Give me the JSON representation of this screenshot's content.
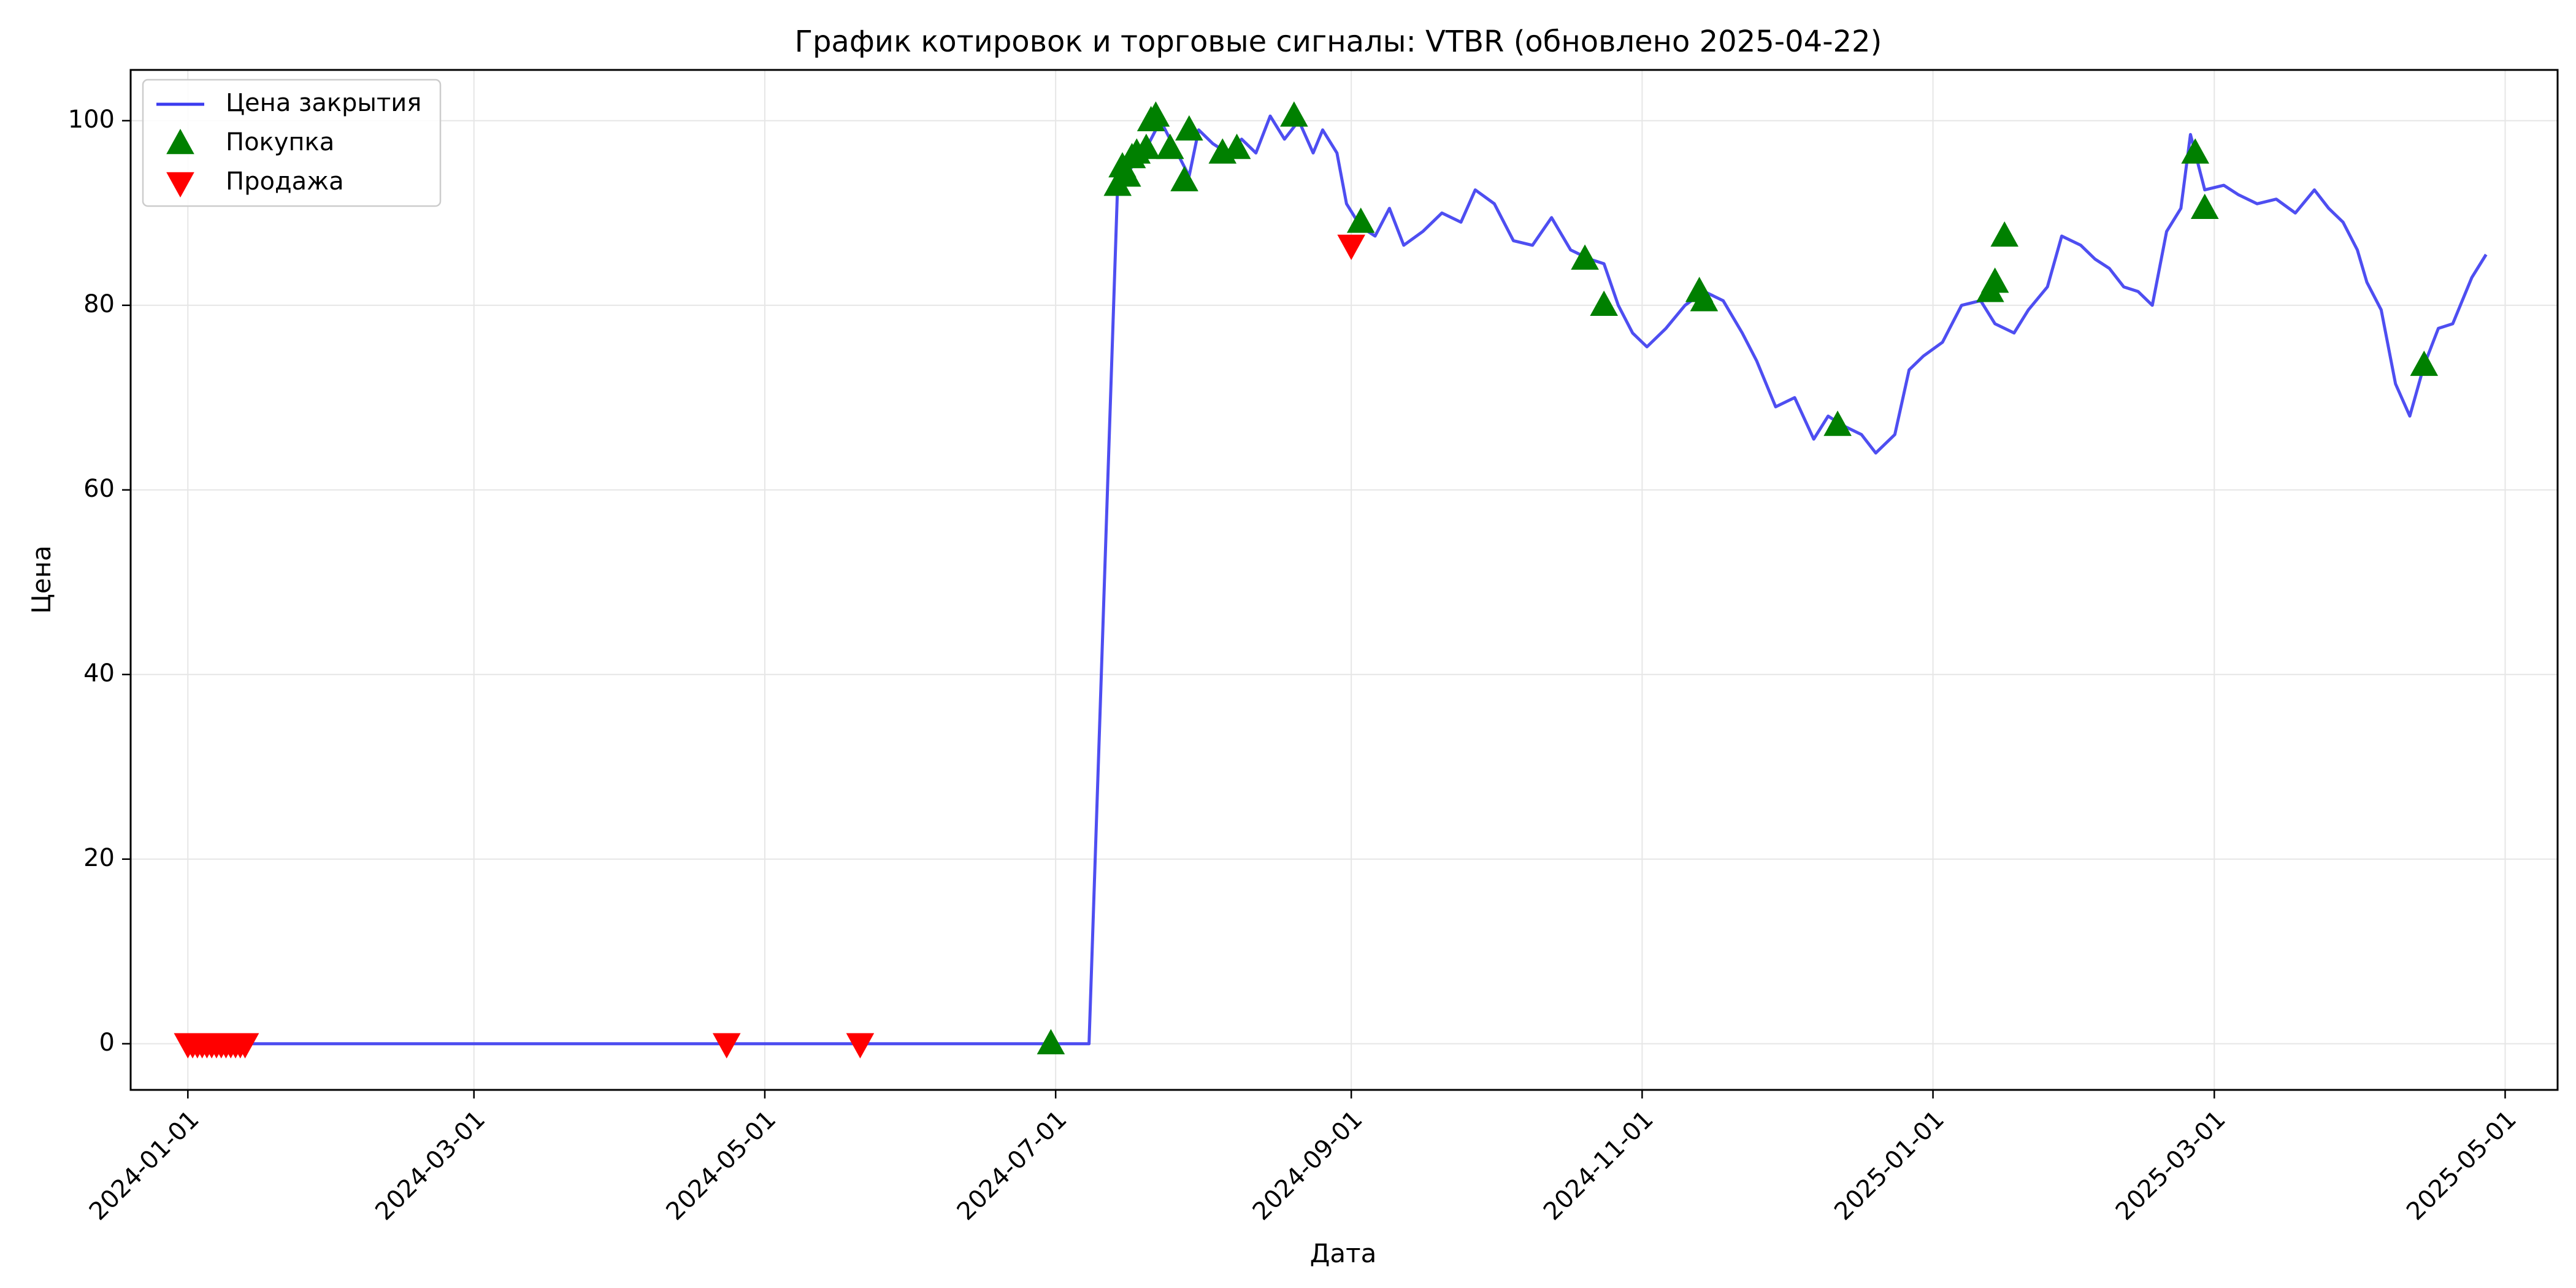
{
  "chart_data": {
    "type": "line",
    "title": "График котировок и торговые сигналы: VTBR (обновлено 2025-04-22)",
    "xlabel": "Дата",
    "ylabel": "Цена",
    "xlim": [
      "2023-12-20",
      "2025-05-12"
    ],
    "ylim": [
      -5,
      105.5
    ],
    "x_ticks": [
      "2024-01-01",
      "2024-03-01",
      "2024-05-01",
      "2024-07-01",
      "2024-09-01",
      "2024-11-01",
      "2025-01-01",
      "2025-03-01",
      "2025-05-01"
    ],
    "y_ticks": [
      0,
      20,
      40,
      60,
      80,
      100
    ],
    "grid": true,
    "legend": "top-left",
    "colors": {
      "close": "#3b3bef",
      "buy": "#008000",
      "sell": "#ff0000"
    },
    "series": [
      {
        "name": "Цена закрытия",
        "kind": "line",
        "points": [
          [
            "2024-01-03",
            0
          ],
          [
            "2024-03-01",
            0
          ],
          [
            "2024-05-01",
            0
          ],
          [
            "2024-07-01",
            0
          ],
          [
            "2024-07-08",
            0
          ],
          [
            "2024-07-14",
            93
          ],
          [
            "2024-07-17",
            95
          ],
          [
            "2024-07-20",
            97
          ],
          [
            "2024-07-23",
            100
          ],
          [
            "2024-07-26",
            97
          ],
          [
            "2024-07-29",
            94
          ],
          [
            "2024-07-31",
            99
          ],
          [
            "2024-08-03",
            97.5
          ],
          [
            "2024-08-06",
            96.5
          ],
          [
            "2024-08-09",
            98
          ],
          [
            "2024-08-12",
            96.5
          ],
          [
            "2024-08-15",
            100.5
          ],
          [
            "2024-08-18",
            98
          ],
          [
            "2024-08-21",
            100
          ],
          [
            "2024-08-24",
            96.5
          ],
          [
            "2024-08-26",
            99
          ],
          [
            "2024-08-29",
            96.5
          ],
          [
            "2024-08-31",
            91
          ],
          [
            "2024-09-03",
            88.5
          ],
          [
            "2024-09-06",
            87.5
          ],
          [
            "2024-09-09",
            90.5
          ],
          [
            "2024-09-12",
            86.5
          ],
          [
            "2024-09-16",
            88
          ],
          [
            "2024-09-20",
            90
          ],
          [
            "2024-09-24",
            89
          ],
          [
            "2024-09-27",
            92.5
          ],
          [
            "2024-10-01",
            91
          ],
          [
            "2024-10-05",
            87
          ],
          [
            "2024-10-09",
            86.5
          ],
          [
            "2024-10-13",
            89.5
          ],
          [
            "2024-10-17",
            86
          ],
          [
            "2024-10-21",
            85
          ],
          [
            "2024-10-24",
            84.5
          ],
          [
            "2024-10-27",
            80
          ],
          [
            "2024-10-30",
            77
          ],
          [
            "2024-11-02",
            75.5
          ],
          [
            "2024-11-06",
            77.5
          ],
          [
            "2024-11-10",
            80
          ],
          [
            "2024-11-14",
            81.5
          ],
          [
            "2024-11-18",
            80.5
          ],
          [
            "2024-11-22",
            77
          ],
          [
            "2024-11-25",
            74
          ],
          [
            "2024-11-29",
            69
          ],
          [
            "2024-12-03",
            70
          ],
          [
            "2024-12-07",
            65.5
          ],
          [
            "2024-12-10",
            68
          ],
          [
            "2024-12-13",
            67
          ],
          [
            "2024-12-17",
            66
          ],
          [
            "2024-12-20",
            64
          ],
          [
            "2024-12-24",
            66
          ],
          [
            "2024-12-27",
            73
          ],
          [
            "2024-12-30",
            74.5
          ],
          [
            "2025-01-03",
            76
          ],
          [
            "2025-01-07",
            80
          ],
          [
            "2025-01-11",
            80.5
          ],
          [
            "2025-01-14",
            78
          ],
          [
            "2025-01-18",
            77
          ],
          [
            "2025-01-21",
            79.5
          ],
          [
            "2025-01-25",
            82
          ],
          [
            "2025-01-28",
            87.5
          ],
          [
            "2025-02-01",
            86.5
          ],
          [
            "2025-02-04",
            85
          ],
          [
            "2025-02-07",
            84
          ],
          [
            "2025-02-10",
            82
          ],
          [
            "2025-02-13",
            81.5
          ],
          [
            "2025-02-16",
            80
          ],
          [
            "2025-02-19",
            88
          ],
          [
            "2025-02-22",
            90.5
          ],
          [
            "2025-02-24",
            98.5
          ],
          [
            "2025-02-27",
            92.5
          ],
          [
            "2025-03-03",
            93
          ],
          [
            "2025-03-06",
            92
          ],
          [
            "2025-03-10",
            91
          ],
          [
            "2025-03-14",
            91.5
          ],
          [
            "2025-03-18",
            90
          ],
          [
            "2025-03-22",
            92.5
          ],
          [
            "2025-03-25",
            90.5
          ],
          [
            "2025-03-28",
            89
          ],
          [
            "2025-03-31",
            86
          ],
          [
            "2025-04-02",
            82.5
          ],
          [
            "2025-04-05",
            79.5
          ],
          [
            "2025-04-08",
            71.5
          ],
          [
            "2025-04-11",
            68
          ],
          [
            "2025-04-14",
            73.5
          ],
          [
            "2025-04-17",
            77.5
          ],
          [
            "2025-04-20",
            78
          ],
          [
            "2025-04-24",
            83
          ],
          [
            "2025-04-27",
            85.5
          ]
        ]
      },
      {
        "name": "Покупка",
        "kind": "marker-up",
        "points": [
          [
            "2024-06-30",
            0
          ],
          [
            "2024-07-14",
            93
          ],
          [
            "2024-07-15",
            95
          ],
          [
            "2024-07-16",
            94
          ],
          [
            "2024-07-17",
            96
          ],
          [
            "2024-07-18",
            96.5
          ],
          [
            "2024-07-20",
            97
          ],
          [
            "2024-07-21",
            100
          ],
          [
            "2024-07-22",
            100.5
          ],
          [
            "2024-07-25",
            97
          ],
          [
            "2024-07-28",
            93.5
          ],
          [
            "2024-07-29",
            99
          ],
          [
            "2024-08-05",
            96.5
          ],
          [
            "2024-08-08",
            97
          ],
          [
            "2024-08-20",
            100.5
          ],
          [
            "2024-09-03",
            89
          ],
          [
            "2024-10-20",
            85
          ],
          [
            "2024-10-24",
            80
          ],
          [
            "2024-11-13",
            81.5
          ],
          [
            "2024-11-14",
            80.5
          ],
          [
            "2024-12-12",
            67
          ],
          [
            "2025-01-13",
            81.5
          ],
          [
            "2025-01-14",
            82.5
          ],
          [
            "2025-01-16",
            87.5
          ],
          [
            "2025-02-25",
            96.5
          ],
          [
            "2025-02-27",
            90.5
          ],
          [
            "2025-04-14",
            73.5
          ]
        ]
      },
      {
        "name": "Продажа",
        "kind": "marker-down",
        "points": [
          [
            "2024-01-01",
            0
          ],
          [
            "2024-01-02",
            0
          ],
          [
            "2024-01-03",
            0
          ],
          [
            "2024-01-04",
            0
          ],
          [
            "2024-01-05",
            0
          ],
          [
            "2024-01-06",
            0
          ],
          [
            "2024-01-07",
            0
          ],
          [
            "2024-01-08",
            0
          ],
          [
            "2024-01-09",
            0
          ],
          [
            "2024-01-10",
            0
          ],
          [
            "2024-01-11",
            0
          ],
          [
            "2024-01-12",
            0
          ],
          [
            "2024-01-13",
            0
          ],
          [
            "2024-04-23",
            0
          ],
          [
            "2024-05-21",
            0
          ],
          [
            "2024-09-01",
            86.5
          ]
        ]
      }
    ]
  }
}
